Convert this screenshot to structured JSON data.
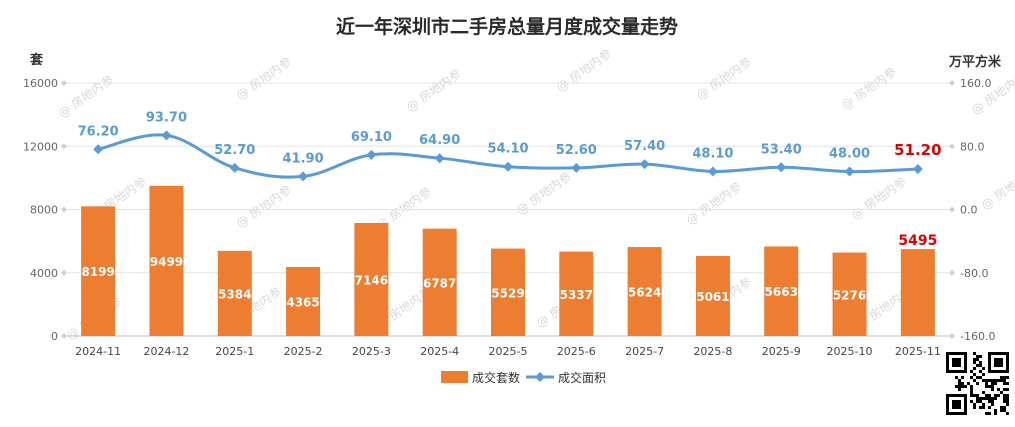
{
  "chart_data": {
    "type": "bar",
    "title": "近一年深圳市二手房总量月度成交量走势",
    "ylabel_left": "套",
    "ylabel_right": "万平方米",
    "categories": [
      "2024-11",
      "2024-12",
      "2025-1",
      "2025-2",
      "2025-3",
      "2025-4",
      "2025-5",
      "2025-6",
      "2025-7",
      "2025-8",
      "2025-9",
      "2025-10",
      "2025-11"
    ],
    "ylim_left": [
      0,
      16000
    ],
    "yticks_left": [
      "0",
      "4000",
      "8000",
      "12000",
      "16000"
    ],
    "ylim_right": [
      -160,
      160
    ],
    "yticks_right": [
      "-160.0",
      "-80.0",
      "0.0",
      "80.0",
      "160.0"
    ],
    "series": [
      {
        "name": "成交套数",
        "type": "bar",
        "axis": "left",
        "color": "#ed7d31",
        "values": [
          8199,
          9499,
          5384,
          4365,
          7146,
          6787,
          5529,
          5337,
          5624,
          5061,
          5663,
          5276,
          5495
        ],
        "labels": [
          "8199",
          "9499",
          "5384",
          "4365",
          "7146",
          "6787",
          "5529",
          "5337",
          "5624",
          "5061",
          "5663",
          "5276",
          "5495"
        ]
      },
      {
        "name": "成交面积",
        "type": "line",
        "axis": "right",
        "color": "#5b9bd5",
        "values": [
          76.2,
          93.7,
          52.7,
          41.9,
          69.1,
          64.9,
          54.1,
          52.6,
          57.4,
          48.1,
          53.4,
          48.0,
          51.2
        ],
        "labels": [
          "76.20",
          "93.70",
          "52.70",
          "41.90",
          "69.10",
          "64.90",
          "54.10",
          "52.60",
          "57.40",
          "48.10",
          "53.40",
          "48.00",
          "51.20"
        ]
      }
    ],
    "highlight_color": "#e00000",
    "grid": true,
    "legend": "bottom-center"
  },
  "watermark": "@ 房地内参"
}
